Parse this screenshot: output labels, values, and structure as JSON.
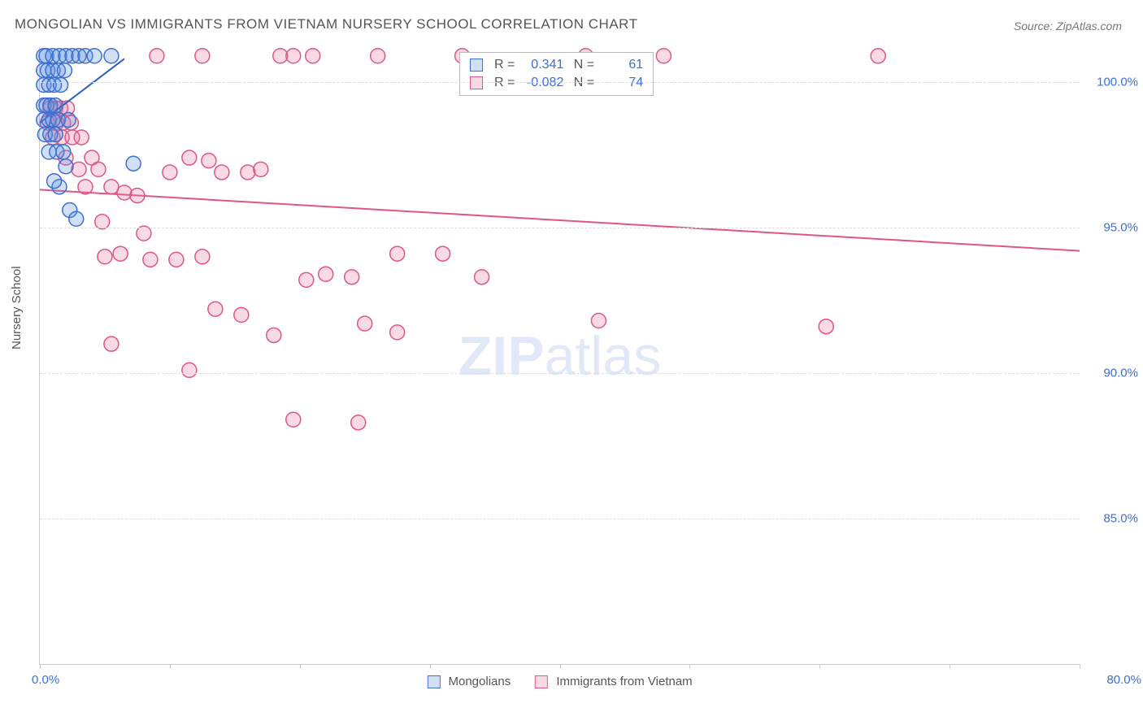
{
  "title": "MONGOLIAN VS IMMIGRANTS FROM VIETNAM NURSERY SCHOOL CORRELATION CHART",
  "source": "Source: ZipAtlas.com",
  "ylabel": "Nursery School",
  "watermark_bold": "ZIP",
  "watermark_light": "atlas",
  "chart": {
    "type": "scatter",
    "xlim": [
      0,
      80
    ],
    "ylim": [
      80,
      101.2
    ],
    "yticks": [
      85,
      90,
      95,
      100
    ],
    "ytick_labels": [
      "85.0%",
      "90.0%",
      "95.0%",
      "100.0%"
    ],
    "xtick_left": "0.0%",
    "xtick_right": "80.0%",
    "xtick_positions": [
      0,
      10,
      20,
      30,
      40,
      50,
      60,
      70,
      80
    ],
    "grid_color": "#dddddd",
    "background_color": "#ffffff",
    "marker_radius": 9,
    "marker_stroke_width": 1.5,
    "line_width": 2,
    "series": [
      {
        "name": "Mongolians",
        "fill": "#5a8fe0",
        "fill_opacity": 0.28,
        "stroke": "#3b6fd4",
        "line_color": "#2a5fc0",
        "R": "0.341",
        "N": "61",
        "trend": {
          "x1": 0,
          "y1": 98.6,
          "x2": 6.5,
          "y2": 100.8
        },
        "points": [
          [
            0.3,
            100.9
          ],
          [
            0.5,
            100.9
          ],
          [
            1.0,
            100.9
          ],
          [
            1.5,
            100.9
          ],
          [
            2.0,
            100.9
          ],
          [
            2.5,
            100.9
          ],
          [
            3.0,
            100.9
          ],
          [
            3.5,
            100.9
          ],
          [
            4.2,
            100.9
          ],
          [
            5.5,
            100.9
          ],
          [
            0.3,
            100.4
          ],
          [
            0.6,
            100.4
          ],
          [
            1.0,
            100.4
          ],
          [
            1.4,
            100.4
          ],
          [
            1.9,
            100.4
          ],
          [
            0.3,
            99.9
          ],
          [
            0.7,
            99.9
          ],
          [
            1.1,
            99.9
          ],
          [
            1.6,
            99.9
          ],
          [
            0.3,
            99.2
          ],
          [
            0.5,
            99.2
          ],
          [
            0.8,
            99.2
          ],
          [
            1.2,
            99.2
          ],
          [
            0.3,
            98.7
          ],
          [
            0.7,
            98.7
          ],
          [
            1.0,
            98.7
          ],
          [
            1.4,
            98.7
          ],
          [
            2.2,
            98.7
          ],
          [
            0.4,
            98.2
          ],
          [
            0.8,
            98.2
          ],
          [
            1.2,
            98.2
          ],
          [
            0.7,
            97.6
          ],
          [
            1.3,
            97.6
          ],
          [
            1.8,
            97.6
          ],
          [
            2.0,
            97.1
          ],
          [
            7.2,
            97.2
          ],
          [
            1.5,
            96.4
          ],
          [
            1.1,
            96.6
          ],
          [
            2.3,
            95.6
          ],
          [
            2.8,
            95.3
          ]
        ]
      },
      {
        "name": "Immigrants from Vietnam",
        "fill": "#e87ba0",
        "fill_opacity": 0.28,
        "stroke": "#e05585",
        "line_color": "#e05585",
        "R": "-0.082",
        "N": "74",
        "trend": {
          "x1": 0,
          "y1": 96.3,
          "x2": 80,
          "y2": 94.2
        },
        "points": [
          [
            9.0,
            100.9
          ],
          [
            12.5,
            100.9
          ],
          [
            19.5,
            100.9
          ],
          [
            21.0,
            100.9
          ],
          [
            26.0,
            100.9
          ],
          [
            32.5,
            100.9
          ],
          [
            42.0,
            100.9
          ],
          [
            48.0,
            100.9
          ],
          [
            64.5,
            100.9
          ],
          [
            0.8,
            99.1
          ],
          [
            1.2,
            99.1
          ],
          [
            1.6,
            99.1
          ],
          [
            2.1,
            99.1
          ],
          [
            0.6,
            98.6
          ],
          [
            1.3,
            98.6
          ],
          [
            1.8,
            98.6
          ],
          [
            2.4,
            98.6
          ],
          [
            1.0,
            98.1
          ],
          [
            1.7,
            98.1
          ],
          [
            2.5,
            98.1
          ],
          [
            3.2,
            98.1
          ],
          [
            2.0,
            97.4
          ],
          [
            4.0,
            97.4
          ],
          [
            11.5,
            97.4
          ],
          [
            13.0,
            97.3
          ],
          [
            3.0,
            97.0
          ],
          [
            4.5,
            97.0
          ],
          [
            10.0,
            96.9
          ],
          [
            16.0,
            96.9
          ],
          [
            14.0,
            96.9
          ],
          [
            3.5,
            96.4
          ],
          [
            5.5,
            96.4
          ],
          [
            6.5,
            96.2
          ],
          [
            7.5,
            96.1
          ],
          [
            4.8,
            95.2
          ],
          [
            8.0,
            94.8
          ],
          [
            5.0,
            94.0
          ],
          [
            6.2,
            94.1
          ],
          [
            8.5,
            93.9
          ],
          [
            10.5,
            93.9
          ],
          [
            12.5,
            94.0
          ],
          [
            27.5,
            94.1
          ],
          [
            31.0,
            94.1
          ],
          [
            20.5,
            93.2
          ],
          [
            22.0,
            93.4
          ],
          [
            24.0,
            93.3
          ],
          [
            34.0,
            93.3
          ],
          [
            13.5,
            92.2
          ],
          [
            15.5,
            92.0
          ],
          [
            5.5,
            91.0
          ],
          [
            18.0,
            91.3
          ],
          [
            25.0,
            91.7
          ],
          [
            27.5,
            91.4
          ],
          [
            11.5,
            90.1
          ],
          [
            60.5,
            91.6
          ],
          [
            43.0,
            91.8
          ],
          [
            19.5,
            88.4
          ],
          [
            24.5,
            88.3
          ],
          [
            18.5,
            100.9
          ],
          [
            17.0,
            97.0
          ]
        ]
      }
    ]
  },
  "legend": {
    "series1_label": "Mongolians",
    "series2_label": "Immigrants from Vietnam"
  }
}
